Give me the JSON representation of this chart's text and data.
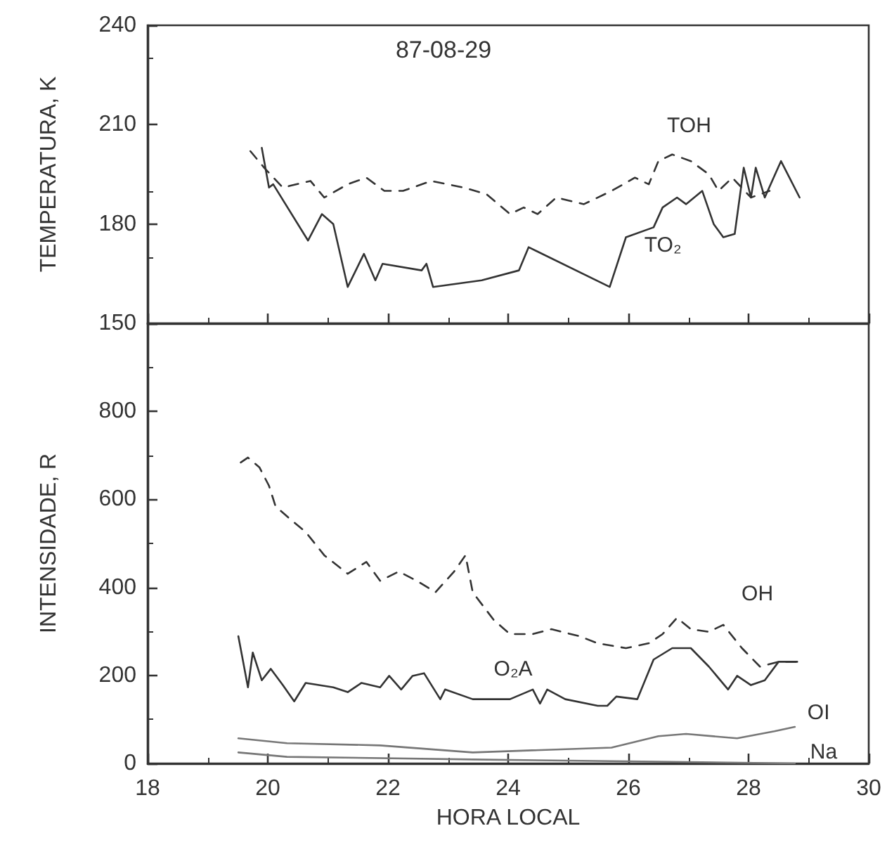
{
  "chart_data": [
    {
      "type": "line",
      "title": "87-08-29",
      "ylabel": "TEMPERATURA, K",
      "xlim": [
        18,
        30
      ],
      "xticks": [
        18,
        20,
        22,
        24,
        26,
        28,
        30
      ],
      "ylim": [
        150,
        240
      ],
      "yticks": [
        150,
        180,
        210,
        240
      ],
      "tick_labels": "y",
      "legend": false,
      "grid": false,
      "series": [
        {
          "name": "TOH",
          "color": "#333333",
          "line_style": "dashed",
          "x": [
            19.71,
            19.94,
            20.25,
            20.71,
            20.94,
            21.33,
            21.64,
            21.94,
            22.25,
            22.72,
            23.26,
            23.64,
            24.03,
            24.26,
            24.49,
            24.8,
            25.26,
            25.72,
            26.11,
            26.34,
            26.5,
            26.73,
            27.04,
            27.34,
            27.5,
            27.73,
            28.04,
            28.35
          ],
          "values": [
            202,
            197,
            191,
            193,
            188,
            192,
            194,
            190,
            190,
            193,
            191,
            189,
            183,
            185,
            183,
            188,
            186,
            190,
            194,
            192,
            199,
            201,
            199,
            195,
            190,
            194,
            188,
            190
          ]
        },
        {
          "name": "TO₂",
          "color": "#333333",
          "line_style": "solid",
          "x": [
            19.9,
            20.02,
            20.09,
            20.67,
            20.9,
            21.09,
            21.33,
            21.6,
            21.79,
            21.91,
            22.56,
            22.64,
            22.75,
            23.56,
            24.18,
            24.34,
            25.69,
            25.96,
            26.42,
            26.57,
            26.81,
            26.96,
            27.23,
            27.42,
            27.58,
            27.77,
            27.92,
            28.04,
            28.12,
            28.27,
            28.54,
            28.85
          ],
          "values": [
            203,
            191,
            192,
            175,
            183,
            180,
            161,
            171,
            163,
            168,
            166,
            168,
            161,
            163,
            166,
            173,
            161,
            176,
            179,
            185,
            188,
            186,
            190,
            180,
            176,
            177,
            197,
            188,
            197,
            188,
            199,
            188
          ]
        }
      ]
    },
    {
      "type": "line",
      "xlabel": "HORA LOCAL",
      "ylabel": "INTENSIDADE, R",
      "xlim": [
        18,
        30
      ],
      "xticks": [
        18,
        20,
        22,
        24,
        26,
        28,
        30
      ],
      "ylim": [
        0,
        1000
      ],
      "yticks": [
        0,
        200,
        400,
        600,
        800,
        {
          "value": 1000,
          "label": null
        }
      ],
      "legend": false,
      "grid": false,
      "series": [
        {
          "name": "OH",
          "color": "#333333",
          "line_style": "dashed",
          "x": [
            19.55,
            19.67,
            19.86,
            20.02,
            20.13,
            20.4,
            20.63,
            20.94,
            21.33,
            21.64,
            21.87,
            22.18,
            22.48,
            22.79,
            23.1,
            23.29,
            23.41,
            23.76,
            24.03,
            24.41,
            24.72,
            25.19,
            25.49,
            25.96,
            26.34,
            26.57,
            26.81,
            27.04,
            27.34,
            27.58,
            27.89,
            28.19,
            28.5,
            28.81
          ],
          "values": [
            684,
            695,
            673,
            631,
            584,
            552,
            526,
            473,
            431,
            458,
            415,
            436,
            415,
            389,
            436,
            473,
            389,
            326,
            294,
            294,
            305,
            289,
            273,
            262,
            273,
            294,
            331,
            305,
            299,
            315,
            262,
            220,
            231,
            231
          ]
        },
        {
          "name": "O₂A",
          "color": "#333333",
          "line_style": "solid",
          "x": [
            19.51,
            19.67,
            19.75,
            19.9,
            20.05,
            20.25,
            20.44,
            20.63,
            21.09,
            21.33,
            21.56,
            21.87,
            22.02,
            22.22,
            22.41,
            22.6,
            22.87,
            22.95,
            23.41,
            24.03,
            24.41,
            24.53,
            24.65,
            24.95,
            25.49,
            25.65,
            25.8,
            26.15,
            26.42,
            26.73,
            27.04,
            27.34,
            27.66,
            27.81,
            28.04,
            28.27,
            28.5,
            28.81
          ],
          "values": [
            289,
            173,
            252,
            189,
            215,
            178,
            141,
            183,
            173,
            162,
            183,
            173,
            199,
            168,
            199,
            205,
            146,
            168,
            146,
            146,
            168,
            136,
            168,
            146,
            131,
            131,
            152,
            146,
            236,
            262,
            262,
            220,
            168,
            199,
            178,
            189,
            231,
            231
          ]
        },
        {
          "name": "OI",
          "color": "#777777",
          "line_style": "solid",
          "x": [
            19.51,
            20.32,
            21.87,
            23.41,
            25.72,
            26.5,
            26.96,
            27.81,
            28.43,
            28.77
          ],
          "values": [
            57,
            46,
            41,
            25,
            36,
            62,
            67,
            57,
            73,
            83
          ]
        },
        {
          "name": "Na",
          "color": "#777777",
          "line_style": "solid",
          "x": [
            19.51,
            20.32,
            23.41,
            26.5,
            28.77
          ],
          "values": [
            25,
            15,
            9,
            4,
            0
          ]
        }
      ]
    }
  ]
}
